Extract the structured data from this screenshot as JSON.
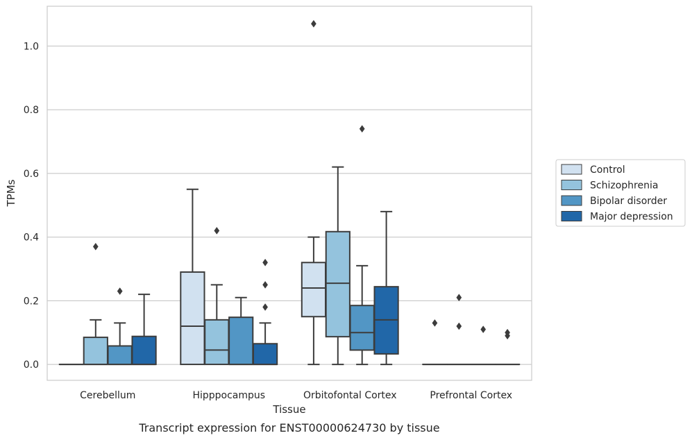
{
  "chart_data": {
    "type": "box",
    "caption": "Transcript expression for ENST00000624730 by tissue",
    "xlabel": "Tissue",
    "ylabel": "TPMs",
    "ylim": [
      -0.05,
      1.125
    ],
    "yticks": [
      0.0,
      0.2,
      0.4,
      0.6,
      0.8,
      1.0
    ],
    "ytick_labels": [
      "0.0",
      "0.2",
      "0.4",
      "0.6",
      "0.8",
      "1.0"
    ],
    "grid": "horizontal",
    "legend_position": "right",
    "categories": [
      "Cerebellum",
      "Hipppocampus",
      "Orbitofontal Cortex",
      "Prefrontal Cortex"
    ],
    "series": [
      {
        "name": "Control",
        "color": "#d1e1f0",
        "boxes": [
          {
            "min": 0.0,
            "q1": 0.0,
            "median": 0.0,
            "q3": 0.0,
            "max": 0.0,
            "outliers": []
          },
          {
            "min": 0.0,
            "q1": 0.0,
            "median": 0.12,
            "q3": 0.29,
            "max": 0.55,
            "outliers": []
          },
          {
            "min": 0.0,
            "q1": 0.15,
            "median": 0.24,
            "q3": 0.32,
            "max": 0.4,
            "outliers": [
              1.07
            ]
          },
          {
            "min": 0.0,
            "q1": 0.0,
            "median": 0.0,
            "q3": 0.0,
            "max": 0.0,
            "outliers": [
              0.13
            ]
          }
        ]
      },
      {
        "name": "Schizophrenia",
        "color": "#94c3dd",
        "boxes": [
          {
            "min": 0.0,
            "q1": 0.0,
            "median": 0.0,
            "q3": 0.085,
            "max": 0.14,
            "outliers": [
              0.37
            ]
          },
          {
            "min": 0.0,
            "q1": 0.0,
            "median": 0.045,
            "q3": 0.14,
            "max": 0.25,
            "outliers": [
              0.42
            ]
          },
          {
            "min": 0.0,
            "q1": 0.087,
            "median": 0.255,
            "q3": 0.417,
            "max": 0.62,
            "outliers": []
          },
          {
            "min": 0.0,
            "q1": 0.0,
            "median": 0.0,
            "q3": 0.0,
            "max": 0.0,
            "outliers": [
              0.21,
              0.12
            ]
          }
        ]
      },
      {
        "name": "Bipolar disorder",
        "color": "#5296c5",
        "boxes": [
          {
            "min": 0.0,
            "q1": 0.0,
            "median": 0.0,
            "q3": 0.058,
            "max": 0.13,
            "outliers": [
              0.23
            ]
          },
          {
            "min": 0.0,
            "q1": 0.0,
            "median": 0.0,
            "q3": 0.148,
            "max": 0.21,
            "outliers": []
          },
          {
            "min": 0.0,
            "q1": 0.045,
            "median": 0.1,
            "q3": 0.185,
            "max": 0.31,
            "outliers": [
              0.74
            ]
          },
          {
            "min": 0.0,
            "q1": 0.0,
            "median": 0.0,
            "q3": 0.0,
            "max": 0.0,
            "outliers": [
              0.11
            ]
          }
        ]
      },
      {
        "name": "Major depression",
        "color": "#2167a8",
        "boxes": [
          {
            "min": 0.0,
            "q1": 0.0,
            "median": 0.0,
            "q3": 0.088,
            "max": 0.22,
            "outliers": []
          },
          {
            "min": 0.0,
            "q1": 0.0,
            "median": 0.0,
            "q3": 0.065,
            "max": 0.13,
            "outliers": [
              0.32,
              0.25,
              0.18
            ]
          },
          {
            "min": 0.0,
            "q1": 0.033,
            "median": 0.14,
            "q3": 0.244,
            "max": 0.48,
            "outliers": []
          },
          {
            "min": 0.0,
            "q1": 0.0,
            "median": 0.0,
            "q3": 0.0,
            "max": 0.0,
            "outliers": [
              0.1,
              0.09
            ]
          }
        ]
      }
    ],
    "colors": {
      "grid": "#cccccc",
      "frame": "#cccccc",
      "box_edge": "#3c3c3c",
      "text": "#262626"
    }
  }
}
